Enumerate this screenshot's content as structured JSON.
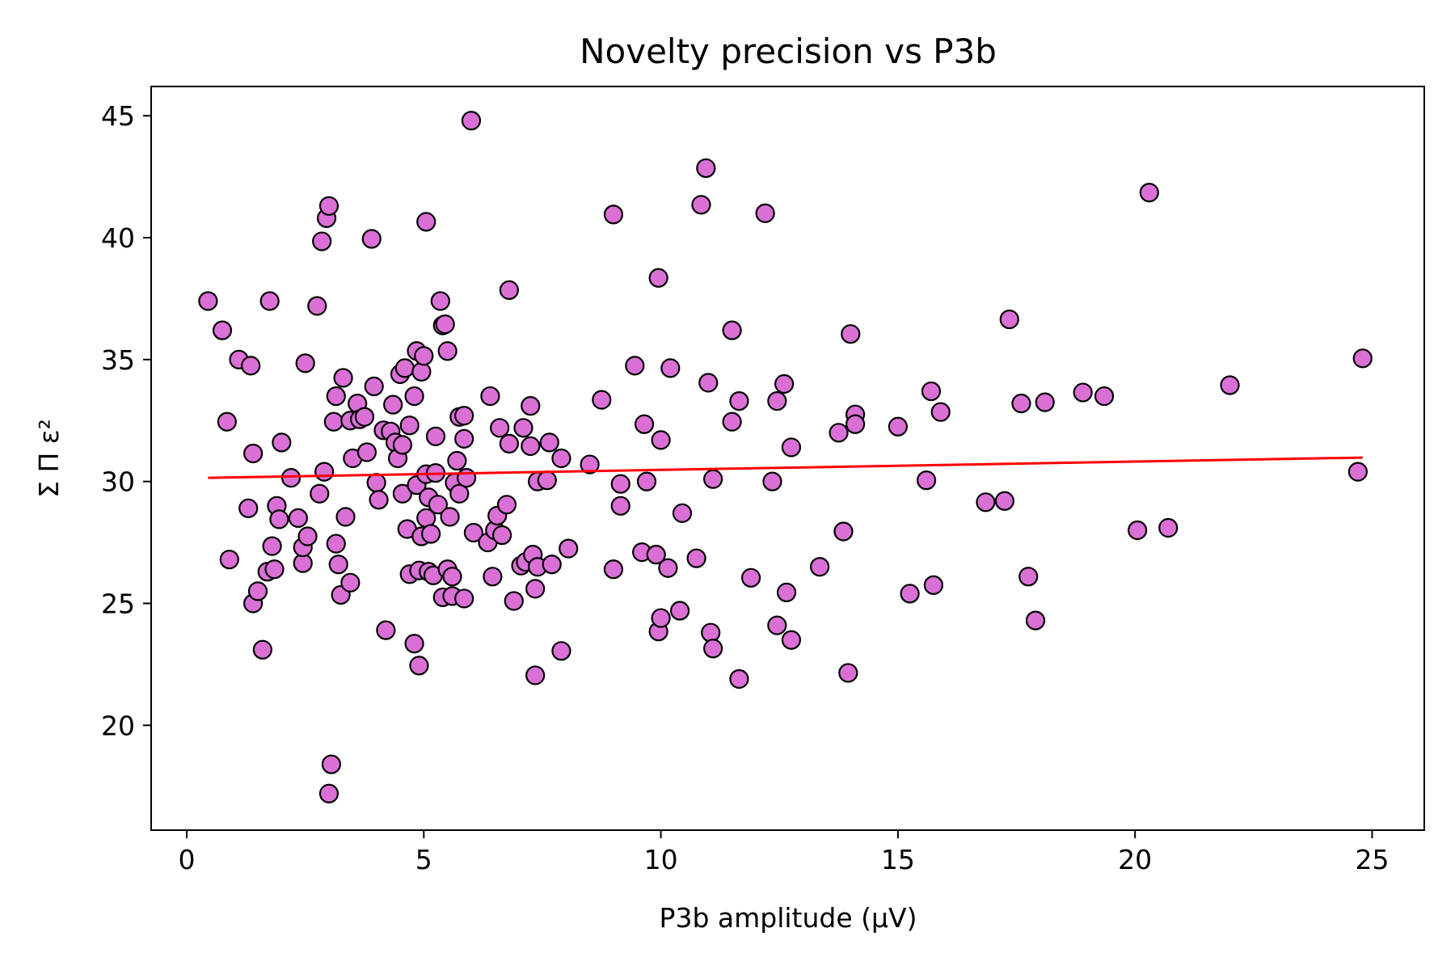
{
  "chart_data": {
    "type": "scatter",
    "title": "Novelty precision vs P3b",
    "xlabel": "P3b amplitude (μV)",
    "ylabel": "Σ Π ε²",
    "xlim": [
      -0.75,
      26.1
    ],
    "ylim": [
      15.7,
      46.2
    ],
    "xticks": [
      0,
      5,
      10,
      15,
      20,
      25
    ],
    "yticks": [
      20,
      25,
      30,
      35,
      40,
      45
    ],
    "grid": false,
    "legend": "none",
    "colors": {
      "point_fill": "#da70d6",
      "point_edge": "#000000",
      "trend_line": "#ff0000"
    },
    "trend_line": {
      "x": [
        0.45,
        24.8
      ],
      "y": [
        30.15,
        30.98
      ]
    },
    "points": [
      [
        0.45,
        37.4
      ],
      [
        0.75,
        36.2
      ],
      [
        0.9,
        26.8
      ],
      [
        0.85,
        32.45
      ],
      [
        1.1,
        35.0
      ],
      [
        1.35,
        34.75
      ],
      [
        1.4,
        31.15
      ],
      [
        1.3,
        28.9
      ],
      [
        1.4,
        25.0
      ],
      [
        1.5,
        25.5
      ],
      [
        1.6,
        23.1
      ],
      [
        1.7,
        26.3
      ],
      [
        1.75,
        37.4
      ],
      [
        1.8,
        27.35
      ],
      [
        1.85,
        26.4
      ],
      [
        1.9,
        29.0
      ],
      [
        1.95,
        28.45
      ],
      [
        2.0,
        31.6
      ],
      [
        2.2,
        30.15
      ],
      [
        2.35,
        28.5
      ],
      [
        2.45,
        26.65
      ],
      [
        2.45,
        27.3
      ],
      [
        2.5,
        34.85
      ],
      [
        2.55,
        27.75
      ],
      [
        2.75,
        37.2
      ],
      [
        2.8,
        29.5
      ],
      [
        2.85,
        39.85
      ],
      [
        2.9,
        30.4
      ],
      [
        2.95,
        40.8
      ],
      [
        3.0,
        41.3
      ],
      [
        3.0,
        17.2
      ],
      [
        3.05,
        18.4
      ],
      [
        3.1,
        32.45
      ],
      [
        3.15,
        33.5
      ],
      [
        3.15,
        27.45
      ],
      [
        3.2,
        26.6
      ],
      [
        3.25,
        25.35
      ],
      [
        3.3,
        34.25
      ],
      [
        3.35,
        28.55
      ],
      [
        3.45,
        25.85
      ],
      [
        3.45,
        32.5
      ],
      [
        3.5,
        30.95
      ],
      [
        3.6,
        33.2
      ],
      [
        3.65,
        32.55
      ],
      [
        3.75,
        32.65
      ],
      [
        3.8,
        31.2
      ],
      [
        3.9,
        39.95
      ],
      [
        3.95,
        33.9
      ],
      [
        4.0,
        29.95
      ],
      [
        4.05,
        29.25
      ],
      [
        4.15,
        32.1
      ],
      [
        4.2,
        23.9
      ],
      [
        4.3,
        32.05
      ],
      [
        4.35,
        33.15
      ],
      [
        4.4,
        31.6
      ],
      [
        4.45,
        30.95
      ],
      [
        4.5,
        34.4
      ],
      [
        4.55,
        29.5
      ],
      [
        4.55,
        31.5
      ],
      [
        4.6,
        34.65
      ],
      [
        4.65,
        28.05
      ],
      [
        4.7,
        32.3
      ],
      [
        4.7,
        26.2
      ],
      [
        4.8,
        23.35
      ],
      [
        4.8,
        33.5
      ],
      [
        4.85,
        35.35
      ],
      [
        4.85,
        29.85
      ],
      [
        4.9,
        26.35
      ],
      [
        4.9,
        22.45
      ],
      [
        4.95,
        34.5
      ],
      [
        4.95,
        27.75
      ],
      [
        5.0,
        35.15
      ],
      [
        5.05,
        40.65
      ],
      [
        5.05,
        30.3
      ],
      [
        5.05,
        28.5
      ],
      [
        5.1,
        29.35
      ],
      [
        5.1,
        26.3
      ],
      [
        5.15,
        27.85
      ],
      [
        5.2,
        26.15
      ],
      [
        5.25,
        31.85
      ],
      [
        5.25,
        30.35
      ],
      [
        5.3,
        29.05
      ],
      [
        5.35,
        37.4
      ],
      [
        5.4,
        36.4
      ],
      [
        5.4,
        25.25
      ],
      [
        5.45,
        36.45
      ],
      [
        5.5,
        35.35
      ],
      [
        5.5,
        26.4
      ],
      [
        5.55,
        28.55
      ],
      [
        5.6,
        26.1
      ],
      [
        5.6,
        25.3
      ],
      [
        5.65,
        29.95
      ],
      [
        5.7,
        30.85
      ],
      [
        5.75,
        29.5
      ],
      [
        5.75,
        32.65
      ],
      [
        5.85,
        31.75
      ],
      [
        5.85,
        32.7
      ],
      [
        5.85,
        25.2
      ],
      [
        5.9,
        30.15
      ],
      [
        6.0,
        44.8
      ],
      [
        6.05,
        27.9
      ],
      [
        6.35,
        27.5
      ],
      [
        6.4,
        33.5
      ],
      [
        6.45,
        26.1
      ],
      [
        6.5,
        28.0
      ],
      [
        6.55,
        28.6
      ],
      [
        6.6,
        32.2
      ],
      [
        6.65,
        27.8
      ],
      [
        6.75,
        29.05
      ],
      [
        6.8,
        37.85
      ],
      [
        6.8,
        31.55
      ],
      [
        6.9,
        25.1
      ],
      [
        7.05,
        26.55
      ],
      [
        7.1,
        32.2
      ],
      [
        7.15,
        26.7
      ],
      [
        7.25,
        31.45
      ],
      [
        7.25,
        33.1
      ],
      [
        7.3,
        27.0
      ],
      [
        7.35,
        25.6
      ],
      [
        7.35,
        22.05
      ],
      [
        7.4,
        26.5
      ],
      [
        7.4,
        30.0
      ],
      [
        7.6,
        30.05
      ],
      [
        7.65,
        31.6
      ],
      [
        7.7,
        26.6
      ],
      [
        7.9,
        30.95
      ],
      [
        7.9,
        23.05
      ],
      [
        8.05,
        27.25
      ],
      [
        8.5,
        30.7
      ],
      [
        8.75,
        33.35
      ],
      [
        9.0,
        40.95
      ],
      [
        9.0,
        26.4
      ],
      [
        9.15,
        29.9
      ],
      [
        9.15,
        29.0
      ],
      [
        9.45,
        34.75
      ],
      [
        9.6,
        27.1
      ],
      [
        9.65,
        32.35
      ],
      [
        9.7,
        30.0
      ],
      [
        9.9,
        27.0
      ],
      [
        9.95,
        38.35
      ],
      [
        9.95,
        23.85
      ],
      [
        10.0,
        31.7
      ],
      [
        10.0,
        24.4
      ],
      [
        10.15,
        26.45
      ],
      [
        10.2,
        34.65
      ],
      [
        10.4,
        24.7
      ],
      [
        10.45,
        28.7
      ],
      [
        10.75,
        26.85
      ],
      [
        10.85,
        41.35
      ],
      [
        10.95,
        42.85
      ],
      [
        11.0,
        34.05
      ],
      [
        11.05,
        23.8
      ],
      [
        11.1,
        23.15
      ],
      [
        11.1,
        30.1
      ],
      [
        11.5,
        36.2
      ],
      [
        11.5,
        32.45
      ],
      [
        11.65,
        33.3
      ],
      [
        11.65,
        21.9
      ],
      [
        11.9,
        26.05
      ],
      [
        12.2,
        41.0
      ],
      [
        12.35,
        30.0
      ],
      [
        12.45,
        33.3
      ],
      [
        12.45,
        24.1
      ],
      [
        12.6,
        34.0
      ],
      [
        12.65,
        25.45
      ],
      [
        12.75,
        23.5
      ],
      [
        12.75,
        31.4
      ],
      [
        13.35,
        26.5
      ],
      [
        13.75,
        32.0
      ],
      [
        13.85,
        27.95
      ],
      [
        13.95,
        22.15
      ],
      [
        14.0,
        36.05
      ],
      [
        14.1,
        32.75
      ],
      [
        14.1,
        32.35
      ],
      [
        15.0,
        32.25
      ],
      [
        15.25,
        25.4
      ],
      [
        15.6,
        30.05
      ],
      [
        15.7,
        33.7
      ],
      [
        15.75,
        25.75
      ],
      [
        15.9,
        32.85
      ],
      [
        16.85,
        29.15
      ],
      [
        17.25,
        29.2
      ],
      [
        17.35,
        36.65
      ],
      [
        17.6,
        33.2
      ],
      [
        17.75,
        26.1
      ],
      [
        17.9,
        24.3
      ],
      [
        18.1,
        33.25
      ],
      [
        18.9,
        33.65
      ],
      [
        19.35,
        33.5
      ],
      [
        20.05,
        28.0
      ],
      [
        20.3,
        41.85
      ],
      [
        20.7,
        28.1
      ],
      [
        22.0,
        33.95
      ],
      [
        24.7,
        30.4
      ],
      [
        24.8,
        35.05
      ]
    ]
  }
}
